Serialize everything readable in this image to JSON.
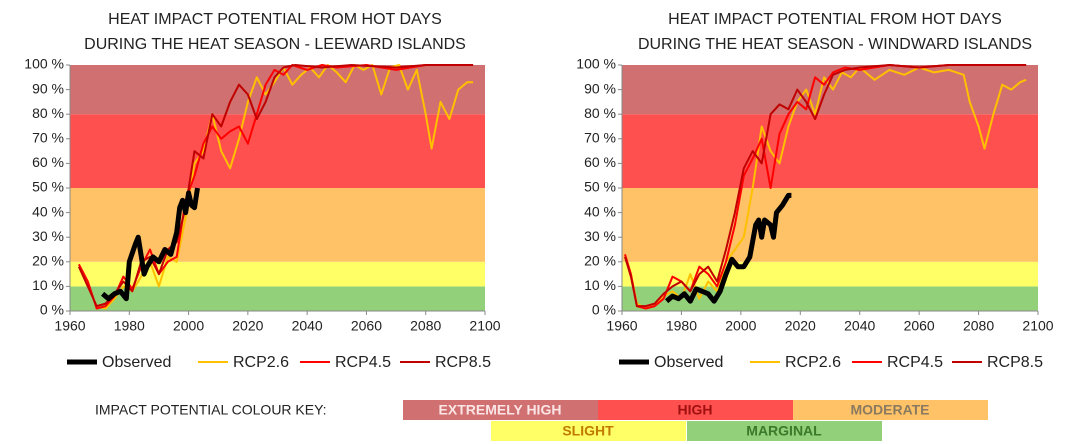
{
  "chart_data": [
    {
      "type": "line",
      "title": [
        "HEAT IMPACT POTENTIAL FROM HOT DAYS",
        "DURING THE HEAT SEASON - LEEWARD ISLANDS"
      ],
      "xlim": [
        1960,
        2100
      ],
      "xticks": [
        1960,
        1980,
        2000,
        2020,
        2040,
        2060,
        2080,
        2100
      ],
      "ylim": [
        0,
        100
      ],
      "yticks": [
        {
          "value": 0,
          "label": "0 %"
        },
        {
          "value": 10,
          "label": "10 %"
        },
        {
          "value": 20,
          "label": "20 %"
        },
        {
          "value": 30,
          "label": "30 %"
        },
        {
          "value": 40,
          "label": "40 %"
        },
        {
          "value": 50,
          "label": "50 %"
        },
        {
          "value": 60,
          "label": "60 %"
        },
        {
          "value": 70,
          "label": "70 %"
        },
        {
          "value": 80,
          "label": "80 %"
        },
        {
          "value": 90,
          "label": "90 %"
        },
        {
          "value": 100,
          "label": "100 %"
        }
      ],
      "bands": [
        {
          "from": 0,
          "to": 10,
          "color": "#92d07a"
        },
        {
          "from": 10,
          "to": 20,
          "color": "#ffff66"
        },
        {
          "from": 20,
          "to": 50,
          "color": "#ffc266"
        },
        {
          "from": 50,
          "to": 80,
          "color": "#ff5050"
        },
        {
          "from": 80,
          "to": 100,
          "color": "#d07071"
        }
      ],
      "series": [
        {
          "name": "RCP2.6",
          "color": "#ffc000",
          "width": 2,
          "x": [
            1963,
            1966,
            1969,
            1972,
            1975,
            1978,
            1981,
            1984,
            1987,
            1990,
            1993,
            1996,
            1999,
            2002,
            2005,
            2008,
            2011,
            2014,
            2017,
            2020,
            2023,
            2026,
            2029,
            2032,
            2035,
            2038,
            2041,
            2044,
            2047,
            2050,
            2053,
            2056,
            2059,
            2062,
            2065,
            2068,
            2071,
            2074,
            2077,
            2080,
            2082,
            2085,
            2088,
            2091,
            2094,
            2096
          ],
          "values": [
            18,
            10,
            2,
            1,
            5,
            10,
            8,
            14,
            20,
            10,
            22,
            20,
            38,
            60,
            65,
            80,
            65,
            58,
            70,
            85,
            95,
            88,
            93,
            99,
            92,
            96,
            99,
            95,
            100,
            97,
            93,
            100,
            98,
            100,
            88,
            99,
            100,
            90,
            98,
            80,
            66,
            85,
            78,
            90,
            93,
            93
          ]
        },
        {
          "name": "RCP4.5",
          "color": "#ff0000",
          "width": 2,
          "x": [
            1963,
            1966,
            1969,
            1972,
            1975,
            1978,
            1981,
            1984,
            1987,
            1990,
            1993,
            1996,
            1999,
            2002,
            2005,
            2008,
            2011,
            2014,
            2017,
            2020,
            2023,
            2026,
            2029,
            2032,
            2035,
            2040,
            2045,
            2050,
            2060,
            2070,
            2080,
            2096
          ],
          "values": [
            19,
            12,
            1,
            2,
            6,
            14,
            9,
            18,
            25,
            15,
            20,
            22,
            45,
            55,
            68,
            75,
            70,
            73,
            75,
            68,
            80,
            92,
            98,
            96,
            100,
            98,
            100,
            99,
            100,
            98,
            100,
            100
          ]
        },
        {
          "name": "RCP8.5",
          "color": "#c00000",
          "width": 2,
          "x": [
            1963,
            1966,
            1969,
            1972,
            1975,
            1978,
            1981,
            1984,
            1987,
            1990,
            1993,
            1996,
            1999,
            2002,
            2005,
            2008,
            2011,
            2014,
            2017,
            2020,
            2023,
            2026,
            2029,
            2032,
            2036,
            2045,
            2055,
            2070,
            2080,
            2096
          ],
          "values": [
            18,
            10,
            2,
            3,
            7,
            12,
            8,
            20,
            22,
            15,
            25,
            28,
            42,
            65,
            62,
            80,
            75,
            85,
            92,
            88,
            78,
            85,
            95,
            99,
            100,
            99,
            100,
            99,
            100,
            100
          ]
        },
        {
          "name": "Observed",
          "color": "#000000",
          "width": 5,
          "x": [
            1971,
            1973,
            1975,
            1977,
            1979,
            1980,
            1982,
            1983,
            1985,
            1986,
            1988,
            1990,
            1992,
            1994,
            1996,
            1997,
            1998,
            1999,
            2000,
            2001,
            2002,
            2003
          ],
          "values": [
            7,
            5,
            7,
            8,
            5,
            20,
            27,
            30,
            15,
            18,
            22,
            20,
            25,
            23,
            32,
            42,
            45,
            40,
            48,
            43,
            42,
            50
          ]
        }
      ]
    },
    {
      "type": "line",
      "title": [
        "HEAT IMPACT POTENTIAL FROM HOT DAYS",
        "DURING THE HEAT SEASON - WINDWARD ISLANDS"
      ],
      "xlim": [
        1960,
        2100
      ],
      "xticks": [
        1960,
        1980,
        2000,
        2020,
        2040,
        2060,
        2080,
        2100
      ],
      "ylim": [
        0,
        100
      ],
      "yticks": [
        {
          "value": 0,
          "label": "0 %"
        },
        {
          "value": 10,
          "label": "10 %"
        },
        {
          "value": 20,
          "label": "20 %"
        },
        {
          "value": 30,
          "label": "30 %"
        },
        {
          "value": 40,
          "label": "40 %"
        },
        {
          "value": 50,
          "label": "50 %"
        },
        {
          "value": 60,
          "label": "60 %"
        },
        {
          "value": 70,
          "label": "70 %"
        },
        {
          "value": 80,
          "label": "80 %"
        },
        {
          "value": 90,
          "label": "90 %"
        },
        {
          "value": 100,
          "label": "100 %"
        }
      ],
      "bands": [
        {
          "from": 0,
          "to": 10,
          "color": "#92d07a"
        },
        {
          "from": 10,
          "to": 20,
          "color": "#ffff66"
        },
        {
          "from": 20,
          "to": 50,
          "color": "#ffc266"
        },
        {
          "from": 50,
          "to": 80,
          "color": "#ff5050"
        },
        {
          "from": 80,
          "to": 100,
          "color": "#d07071"
        }
      ],
      "series": [
        {
          "name": "RCP2.6",
          "color": "#ffc000",
          "width": 2,
          "x": [
            1961,
            1963,
            1965,
            1968,
            1971,
            1974,
            1977,
            1980,
            1983,
            1986,
            1989,
            1992,
            1995,
            1998,
            2001,
            2004,
            2007,
            2010,
            2013,
            2016,
            2019,
            2022,
            2025,
            2028,
            2031,
            2034,
            2037,
            2040,
            2045,
            2050,
            2055,
            2060,
            2065,
            2070,
            2075,
            2077,
            2080,
            2082,
            2085,
            2088,
            2091,
            2094,
            2096
          ],
          "values": [
            23,
            15,
            3,
            1,
            3,
            6,
            8,
            5,
            15,
            5,
            12,
            8,
            20,
            25,
            30,
            50,
            75,
            65,
            60,
            75,
            85,
            90,
            80,
            95,
            90,
            97,
            95,
            99,
            94,
            98,
            96,
            99,
            97,
            98,
            96,
            85,
            75,
            66,
            80,
            92,
            90,
            93,
            94
          ]
        },
        {
          "name": "RCP4.5",
          "color": "#ff0000",
          "width": 2,
          "x": [
            1961,
            1963,
            1965,
            1968,
            1971,
            1974,
            1977,
            1980,
            1983,
            1986,
            1989,
            1992,
            1995,
            1998,
            2001,
            2004,
            2007,
            2010,
            2013,
            2016,
            2019,
            2022,
            2025,
            2028,
            2031,
            2035,
            2040,
            2050,
            2060,
            2070,
            2096
          ],
          "values": [
            23,
            15,
            2,
            1,
            2,
            5,
            14,
            12,
            8,
            18,
            15,
            10,
            20,
            35,
            55,
            62,
            70,
            50,
            72,
            80,
            85,
            82,
            95,
            92,
            97,
            99,
            98,
            100,
            99,
            100,
            100
          ]
        },
        {
          "name": "RCP8.5",
          "color": "#c00000",
          "width": 2,
          "x": [
            1961,
            1963,
            1965,
            1968,
            1971,
            1974,
            1977,
            1980,
            1983,
            1986,
            1989,
            1992,
            1995,
            1998,
            2001,
            2004,
            2007,
            2010,
            2013,
            2016,
            2019,
            2022,
            2025,
            2028,
            2031,
            2035,
            2040,
            2050,
            2060,
            2070,
            2096
          ],
          "values": [
            22,
            14,
            2,
            2,
            3,
            7,
            10,
            12,
            8,
            15,
            18,
            12,
            25,
            40,
            58,
            65,
            60,
            80,
            84,
            82,
            90,
            85,
            78,
            88,
            96,
            98,
            99,
            100,
            99,
            100,
            100
          ]
        },
        {
          "name": "Observed",
          "color": "#000000",
          "width": 5,
          "x": [
            1975,
            1977,
            1979,
            1981,
            1983,
            1985,
            1987,
            1989,
            1991,
            1993,
            1995,
            1997,
            1999,
            2001,
            2003,
            2005,
            2006,
            2007,
            2008,
            2010,
            2011,
            2012,
            2014,
            2015,
            2016,
            2017
          ],
          "values": [
            4,
            6,
            5,
            7,
            4,
            9,
            8,
            7,
            4,
            8,
            15,
            21,
            18,
            18,
            22,
            35,
            37,
            30,
            37,
            35,
            30,
            40,
            43,
            45,
            47,
            47
          ]
        }
      ]
    }
  ],
  "color_key": {
    "label": "IMPACT POTENTIAL COLOUR KEY:",
    "items": [
      {
        "name": "EXTREMELY HIGH",
        "color": "#d07071",
        "text_color": "#fbe5e5"
      },
      {
        "name": "HIGH",
        "color": "#ff5050",
        "text_color": "#a01010"
      },
      {
        "name": "MODERATE",
        "color": "#ffc266",
        "text_color": "#8a7a60"
      },
      {
        "name": "SLIGHT",
        "color": "#ffff66",
        "text_color": "#c07a00"
      },
      {
        "name": "MARGINAL",
        "color": "#92d07a",
        "text_color": "#3a7a2a"
      }
    ]
  }
}
